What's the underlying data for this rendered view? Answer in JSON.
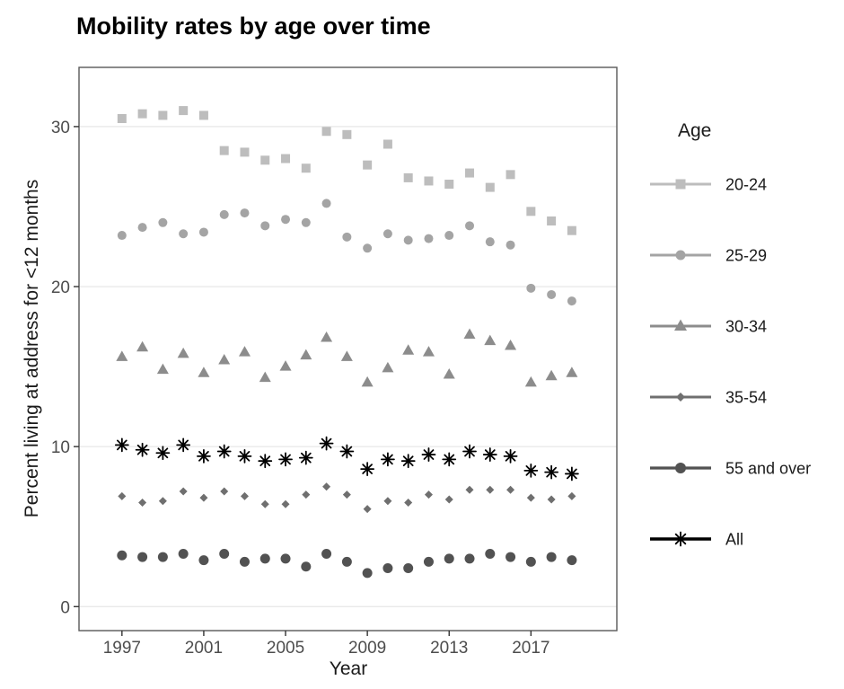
{
  "chart_data": {
    "type": "scatter",
    "title": "Mobility rates by age over time",
    "xlabel": "Year",
    "ylabel": "Percent living at address for <12 months",
    "legend_title": "Age",
    "legend_position": "right",
    "grid": "horizontal-major-only",
    "x": [
      1997,
      1998,
      1999,
      2000,
      2001,
      2002,
      2003,
      2004,
      2005,
      2006,
      2007,
      2008,
      2009,
      2010,
      2011,
      2012,
      2013,
      2014,
      2015,
      2016,
      2017,
      2018,
      2019
    ],
    "x_ticks": [
      "1997",
      "2001",
      "2005",
      "2009",
      "2013",
      "2017"
    ],
    "x_tick_years": [
      1997,
      2001,
      2005,
      2009,
      2013,
      2017
    ],
    "y_ticks": [
      "0",
      "10",
      "20",
      "30"
    ],
    "y_tick_values": [
      0,
      10,
      20,
      30
    ],
    "xlim": [
      1994.9,
      2021.2
    ],
    "ylim": [
      -1.5,
      33.7
    ],
    "smooth": "loess-style trend line with confidence band per series",
    "series": [
      {
        "name": "20-24",
        "marker": "square",
        "color": "#bdbdbd",
        "line_width": 3,
        "marker_size": 10,
        "band": [
          0.4,
          1.1
        ],
        "values": [
          30.5,
          30.8,
          30.7,
          31.0,
          30.7,
          28.5,
          28.4,
          27.9,
          28.0,
          27.4,
          29.7,
          29.5,
          27.6,
          28.9,
          26.8,
          26.6,
          26.4,
          27.1,
          26.2,
          27.0,
          24.7,
          24.1,
          23.5
        ]
      },
      {
        "name": "25-29",
        "marker": "circle",
        "color": "#a4a4a4",
        "line_width": 3,
        "marker_size": 10,
        "band": [
          0.35,
          1.0
        ],
        "values": [
          23.2,
          23.7,
          24.0,
          23.3,
          23.4,
          24.5,
          24.6,
          23.8,
          24.2,
          24.0,
          25.2,
          23.1,
          22.4,
          23.3,
          22.9,
          23.0,
          23.2,
          23.8,
          22.8,
          22.6,
          19.9,
          19.5,
          19.1
        ]
      },
      {
        "name": "30-34",
        "marker": "triangle",
        "color": "#8c8c8c",
        "line_width": 3,
        "marker_size": 12,
        "band": [
          0.5,
          1.1
        ],
        "values": [
          15.6,
          16.2,
          14.8,
          15.8,
          14.6,
          15.4,
          15.9,
          14.3,
          15.0,
          15.7,
          16.8,
          15.6,
          14.0,
          14.9,
          16.0,
          15.9,
          14.5,
          17.0,
          16.6,
          16.3,
          14.0,
          14.4,
          14.6
        ]
      },
      {
        "name": "35-54",
        "marker": "diamond",
        "color": "#6f6f6f",
        "line_width": 3,
        "marker_size": 9,
        "band": [
          0.18,
          0.45
        ],
        "values": [
          6.9,
          6.5,
          6.6,
          7.2,
          6.8,
          7.2,
          6.9,
          6.4,
          6.4,
          7.0,
          7.5,
          7.0,
          6.1,
          6.6,
          6.5,
          7.0,
          6.7,
          7.3,
          7.3,
          7.3,
          6.8,
          6.7,
          6.9
        ]
      },
      {
        "name": "55 and over",
        "marker": "circle",
        "color": "#525252",
        "line_width": 3.2,
        "marker_size": 11,
        "band": [
          0.15,
          0.38
        ],
        "values": [
          3.2,
          3.1,
          3.1,
          3.3,
          2.9,
          3.3,
          2.8,
          3.0,
          3.0,
          2.5,
          3.3,
          2.8,
          2.1,
          2.4,
          2.4,
          2.8,
          3.0,
          3.0,
          3.3,
          3.1,
          2.8,
          3.1,
          2.9
        ]
      },
      {
        "name": "All",
        "marker": "asterisk",
        "color": "#000000",
        "line_width": 3.6,
        "marker_size": 14,
        "band": [
          0.12,
          0.28
        ],
        "values": [
          10.1,
          9.8,
          9.6,
          10.1,
          9.4,
          9.7,
          9.4,
          9.1,
          9.2,
          9.3,
          10.2,
          9.7,
          8.6,
          9.2,
          9.1,
          9.5,
          9.2,
          9.7,
          9.5,
          9.4,
          8.5,
          8.4,
          8.3
        ]
      }
    ],
    "colors": {
      "grid": "#e9e9e9",
      "panel_border": "#595959",
      "tick": "#333333",
      "tick_label": "#4d4d4d",
      "text": "#1a1a1a",
      "band": "#c9c9c9"
    }
  }
}
